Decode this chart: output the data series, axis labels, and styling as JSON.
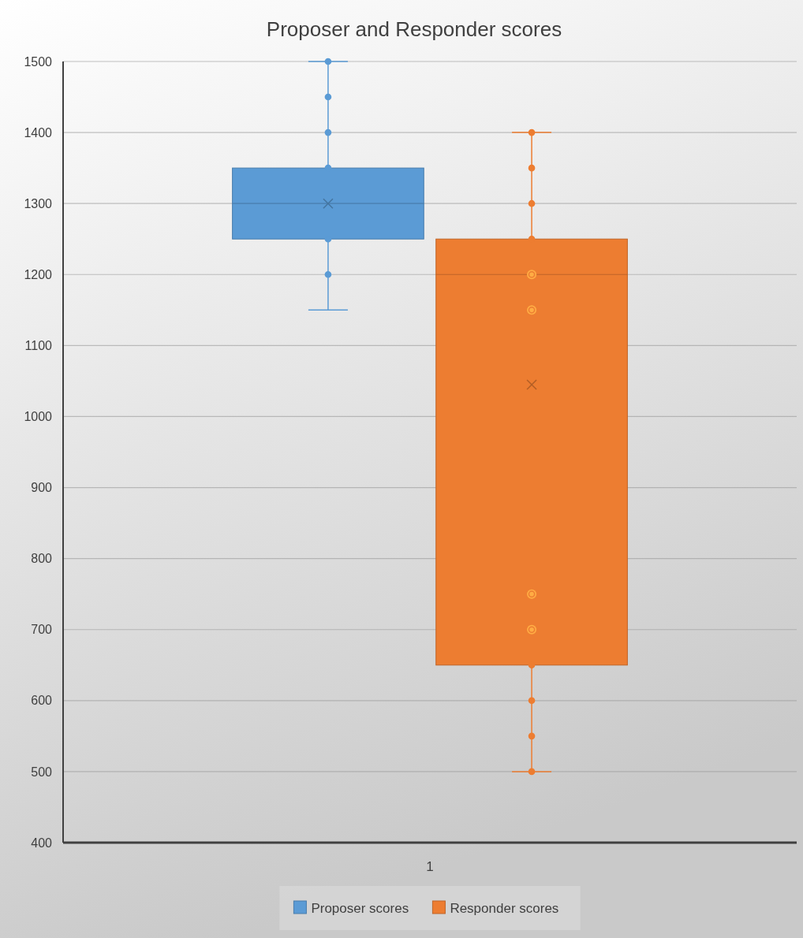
{
  "chart_data": {
    "type": "box",
    "title": "Proposer and Responder scores",
    "categories": [
      "1"
    ],
    "ylim": [
      400,
      1500
    ],
    "yticks": [
      400,
      500,
      600,
      700,
      800,
      900,
      1000,
      1100,
      1200,
      1300,
      1400,
      1500
    ],
    "grid": "y",
    "legend": "bottom",
    "series": [
      {
        "name": "Proposer scores",
        "color": "#5b9bd5",
        "boxes": [
          {
            "low": 1150,
            "q1": 1250,
            "median": 1300,
            "q3": 1350,
            "high": 1500,
            "mean": 1300
          }
        ]
      },
      {
        "name": "Responder scores",
        "color": "#ed7d31",
        "boxes": [
          {
            "low": 500,
            "q1": 650,
            "median": 1200,
            "q3": 1250,
            "high": 1400,
            "mean": 1045
          }
        ]
      },
      {
        "type": "scatter",
        "color": "#5b9bd5",
        "marker": "circle",
        "x": [
          "1",
          "1",
          "1",
          "1",
          "1",
          "1"
        ],
        "values": [
          1500,
          1450,
          1400,
          1350,
          1250,
          1200
        ]
      },
      {
        "type": "scatter",
        "color": "#ed7d31",
        "marker": "circle",
        "x": [
          "1",
          "1",
          "1",
          "1",
          "1",
          "1",
          "1",
          "1",
          "1",
          "1",
          "1",
          "1"
        ],
        "values": [
          1400,
          1350,
          1300,
          1250,
          1200,
          1150,
          750,
          700,
          650,
          600,
          550,
          500
        ]
      }
    ]
  }
}
